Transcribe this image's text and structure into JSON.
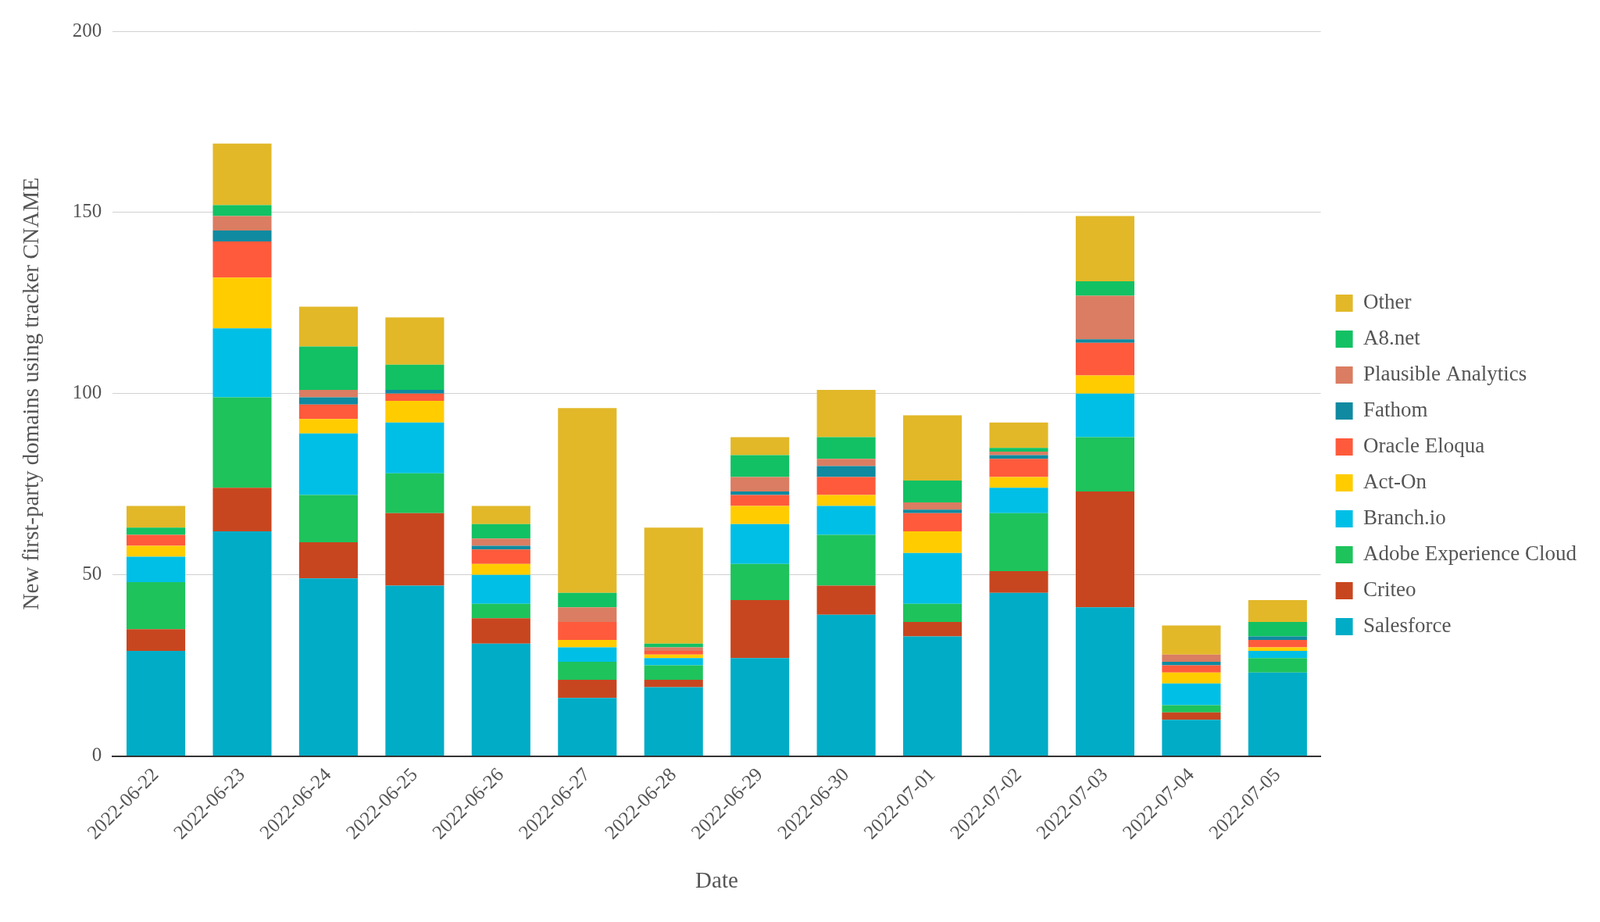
{
  "chart_data": {
    "type": "bar",
    "x_label": "Date",
    "y_label": "New first-party domains using tracker CNAME",
    "categories": [
      "2022-06-22",
      "2022-06-23",
      "2022-06-24",
      "2022-06-25",
      "2022-06-26",
      "2022-06-27",
      "2022-06-28",
      "2022-06-29",
      "2022-06-30",
      "2022-07-01",
      "2022-07-02",
      "2022-07-03",
      "2022-07-04",
      "2022-07-05"
    ],
    "stacked": true,
    "legend": "right",
    "grid": true,
    "ylim": [
      0,
      200
    ],
    "yticks": [
      0,
      50,
      100,
      150,
      200
    ],
    "series": [
      {
        "name": "Salesforce",
        "color": "#00acc6",
        "values": [
          29,
          62,
          49,
          47,
          31,
          16,
          19,
          27,
          39,
          33,
          45,
          41,
          10,
          23
        ]
      },
      {
        "name": "Criteo",
        "color": "#c8461f",
        "values": [
          6,
          12,
          10,
          20,
          7,
          5,
          2,
          16,
          8,
          4,
          6,
          32,
          2,
          0
        ]
      },
      {
        "name": "Adobe Experience Cloud",
        "color": "#1ec35c",
        "values": [
          13,
          25,
          13,
          11,
          4,
          5,
          4,
          10,
          14,
          5,
          16,
          15,
          2,
          4
        ]
      },
      {
        "name": "Branch.io",
        "color": "#00bfe6",
        "values": [
          7,
          19,
          17,
          14,
          8,
          4,
          2,
          11,
          8,
          14,
          7,
          12,
          6,
          2
        ]
      },
      {
        "name": "Act-On",
        "color": "#ffcc00",
        "values": [
          3,
          14,
          4,
          6,
          3,
          2,
          1,
          5,
          3,
          6,
          3,
          5,
          3,
          1
        ]
      },
      {
        "name": "Oracle Eloqua",
        "color": "#ff5a3c",
        "values": [
          3,
          10,
          4,
          2,
          4,
          5,
          1,
          3,
          5,
          5,
          5,
          9,
          2,
          2
        ]
      },
      {
        "name": "Fathom",
        "color": "#0f8aa0",
        "values": [
          0,
          3,
          2,
          1,
          1,
          0,
          0,
          1,
          3,
          1,
          1,
          1,
          1,
          1
        ]
      },
      {
        "name": "Plausible Analytics",
        "color": "#da7d62",
        "values": [
          0,
          4,
          2,
          0,
          2,
          4,
          1,
          4,
          2,
          2,
          1,
          12,
          2,
          0
        ]
      },
      {
        "name": "A8.net",
        "color": "#12c163",
        "values": [
          2,
          3,
          12,
          7,
          4,
          4,
          1,
          6,
          6,
          6,
          1,
          4,
          0,
          4
        ]
      },
      {
        "name": "Other",
        "color": "#e2b829",
        "values": [
          6,
          17,
          11,
          13,
          5,
          51,
          32,
          5,
          13,
          18,
          7,
          18,
          8,
          6
        ]
      }
    ]
  }
}
